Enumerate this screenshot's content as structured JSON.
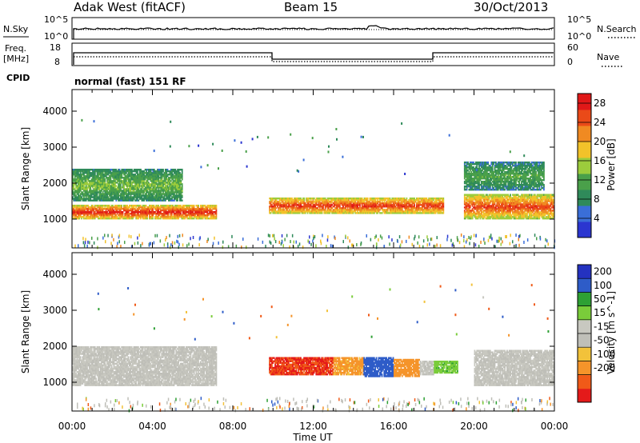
{
  "header": {
    "station": "Adak West (fitACF)",
    "beam": "Beam 15",
    "date": "30/Oct/2013"
  },
  "noise_panel": {
    "left_label": "N.Sky",
    "right_label": "N.Search",
    "left_ticks": [
      "10^5",
      "10^0"
    ],
    "right_ticks": [
      "10^5",
      "10^0"
    ]
  },
  "freq_panel": {
    "left_label_1": "Freq.",
    "left_label_2": "[MHz]",
    "left_ticks": [
      "18",
      "8"
    ],
    "right_label": "Nave",
    "right_ticks": [
      "60",
      "0"
    ],
    "cpid_label": "CPID",
    "cpid_text": "normal (fast) 151 RF"
  },
  "colors": {
    "power": [
      "#2b36d0",
      "#3a6ed8",
      "#2f8a5a",
      "#4aa04a",
      "#9ccc3c",
      "#f2c22a",
      "#f08a22",
      "#ea4a18",
      "#e01818"
    ],
    "velocity": [
      "#e41a1a",
      "#f05a18",
      "#f5942a",
      "#f2c23a",
      "#bfbfb8",
      "#c8c8c0",
      "#7acc3a",
      "#2ea034",
      "#2e5cc8",
      "#2432c0"
    ],
    "ground_scatter": "#bfbfb8"
  },
  "chart_data": [
    {
      "type": "heatmap",
      "title": "Power",
      "xlabel": "Time UT",
      "ylabel": "Slant Range [km]",
      "x_ticks": [
        "00:00",
        "04:00",
        "08:00",
        "12:00",
        "16:00",
        "20:00",
        "00:00"
      ],
      "xlim_hours": [
        0,
        24
      ],
      "ylim_km": [
        200,
        4600
      ],
      "y_ticks": [
        1000,
        2000,
        3000,
        4000
      ],
      "colorbar": {
        "label": "Power [dB]",
        "ticks": [
          4,
          8,
          12,
          16,
          20,
          24,
          28
        ],
        "range": [
          0,
          30
        ]
      },
      "bands": [
        {
          "t_start": 0.0,
          "t_end": 7.2,
          "range_start_km": 1000,
          "range_end_km": 1400,
          "power_db": 28
        },
        {
          "t_start": 0.0,
          "t_end": 5.5,
          "range_start_km": 1500,
          "range_end_km": 2400,
          "power_db": 14
        },
        {
          "t_start": 9.8,
          "t_end": 18.5,
          "range_start_km": 1150,
          "range_end_km": 1600,
          "power_db": 27
        },
        {
          "t_start": 19.5,
          "t_end": 24.0,
          "range_start_km": 1000,
          "range_end_km": 1700,
          "power_db": 26
        },
        {
          "t_start": 19.5,
          "t_end": 23.5,
          "range_start_km": 1800,
          "range_end_km": 2600,
          "power_db": 12
        }
      ]
    },
    {
      "type": "heatmap",
      "title": "Velocity",
      "xlabel": "Time UT",
      "ylabel": "Slant Range [km]",
      "x_ticks": [
        "00:00",
        "04:00",
        "08:00",
        "12:00",
        "16:00",
        "20:00",
        "00:00"
      ],
      "xlim_hours": [
        0,
        24
      ],
      "ylim_km": [
        200,
        4600
      ],
      "y_ticks": [
        1000,
        2000,
        3000,
        4000
      ],
      "colorbar": {
        "label": "Velocity [m s^-1]",
        "ticks": [
          "200",
          "100",
          "50",
          "15",
          "-15",
          "-50",
          "-100",
          "-200"
        ],
        "range": [
          -250,
          250
        ]
      },
      "bands": [
        {
          "t_start": 0.0,
          "t_end": 7.2,
          "range_start_km": 900,
          "range_end_km": 2000,
          "velocity": 0
        },
        {
          "t_start": 9.8,
          "t_end": 13.0,
          "range_start_km": 1200,
          "range_end_km": 1700,
          "velocity": -200
        },
        {
          "t_start": 13.0,
          "t_end": 14.5,
          "range_start_km": 1200,
          "range_end_km": 1700,
          "velocity": -60
        },
        {
          "t_start": 14.5,
          "t_end": 16.0,
          "range_start_km": 1150,
          "range_end_km": 1700,
          "velocity": 170
        },
        {
          "t_start": 16.0,
          "t_end": 17.3,
          "range_start_km": 1150,
          "range_end_km": 1650,
          "velocity": -80
        },
        {
          "t_start": 17.3,
          "t_end": 18.0,
          "range_start_km": 1200,
          "range_end_km": 1600,
          "velocity": 0
        },
        {
          "t_start": 18.0,
          "t_end": 19.2,
          "range_start_km": 1250,
          "range_end_km": 1600,
          "velocity": 40
        },
        {
          "t_start": 20.0,
          "t_end": 24.0,
          "range_start_km": 900,
          "range_end_km": 1900,
          "velocity": 0
        }
      ]
    }
  ]
}
